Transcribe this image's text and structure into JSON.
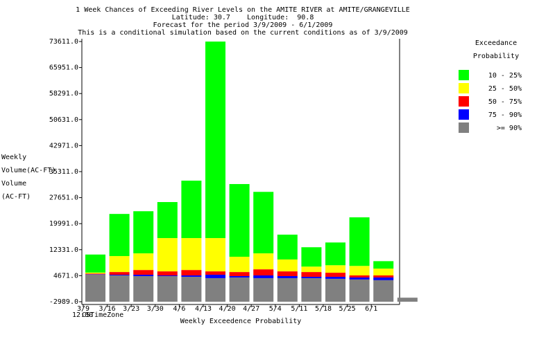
{
  "chart_data": {
    "type": "stacked_bar",
    "title": "1 Week Chances of Exceeding River Levels on the AMITE RIVER at AMITE/GRANGEVILLE",
    "subtitle_lines": [
      "Latitude: 30.7    Longitude:  90.8",
      "Forecast for the period 3/9/2009 - 6/1/2009",
      "This is a conditional simulation based on the current conditions as of 3/9/2009"
    ],
    "y_label_lines": [
      "Weekly",
      "Volume(AC-FT)",
      "Volume",
      "(AC-FT)"
    ],
    "x_label": "Weekly Exceedence Probability",
    "time_label": "12:00",
    "timezone_label": "CSTimeZone",
    "legend_title_lines": [
      "Exceedance",
      "Probability"
    ],
    "categories": [
      "3/9",
      "3/16",
      "3/23",
      "3/30",
      "4/6",
      "4/13",
      "4/20",
      "4/27",
      "5/4",
      "5/11",
      "5/18",
      "5/25",
      "6/1",
      null
    ],
    "series": [
      {
        "name": "10 - 25%",
        "color": "#00ff00",
        "values": [
          5300,
          12400,
          12400,
          10600,
          16900,
          57850,
          21400,
          18100,
          7300,
          5700,
          6700,
          14300,
          2200,
          null
        ]
      },
      {
        "name": "25 - 50%",
        "color": "#ffff00",
        "values": [
          300,
          4700,
          4900,
          9800,
          9400,
          9800,
          4500,
          4700,
          3500,
          1600,
          2200,
          2800,
          2000,
          null
        ]
      },
      {
        "name": "50 - 75%",
        "color": "#ff0000",
        "values": [
          200,
          800,
          1400,
          1200,
          1600,
          1000,
          1200,
          1800,
          1400,
          1400,
          1200,
          600,
          600,
          null
        ]
      },
      {
        "name": "75 - 90%",
        "color": "#0000ff",
        "values": [
          100,
          200,
          400,
          200,
          400,
          1000,
          400,
          800,
          600,
          400,
          600,
          600,
          800,
          null
        ]
      },
      {
        "name": ">= 90%",
        "color": "#808080",
        "values": [
          5000,
          4750,
          4550,
          4550,
          4350,
          3950,
          4150,
          3950,
          3950,
          3950,
          3750,
          3550,
          3350,
          -1800
        ]
      }
    ],
    "ylim": [
      -2989,
      73611
    ],
    "yticks": [
      {
        "value": -2989,
        "label": "-2989.0"
      },
      {
        "value": 4671,
        "label": "4671.0"
      },
      {
        "value": 12331,
        "label": "12331.0"
      },
      {
        "value": 19991,
        "label": "19991.0"
      },
      {
        "value": 27651,
        "label": "27651.0"
      },
      {
        "value": 35311,
        "label": "35311.0"
      },
      {
        "value": 42971,
        "label": "42971.0"
      },
      {
        "value": 50631,
        "label": "50631.0"
      },
      {
        "value": 58291,
        "label": "58291.0"
      },
      {
        "value": 65951,
        "label": "65951.0"
      },
      {
        "value": 73611,
        "label": "73611.0"
      }
    ],
    "grid": false,
    "legend": "right"
  }
}
